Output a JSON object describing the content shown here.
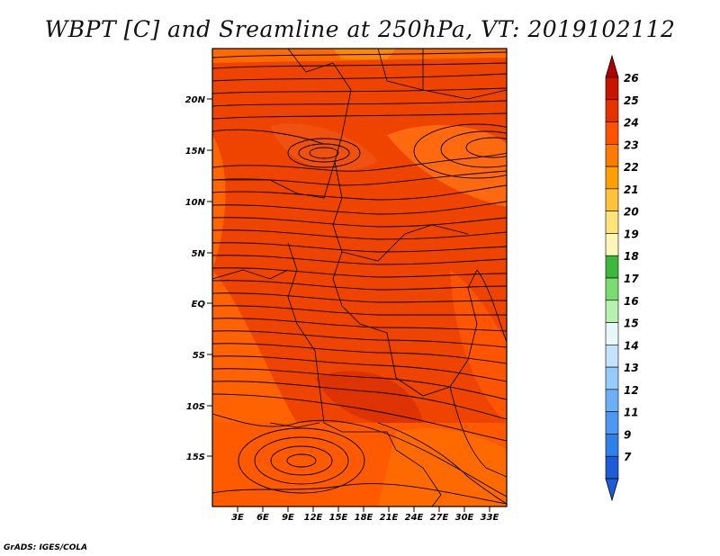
{
  "title": "WBPT [C] and Sreamline at 250hPa, VT: 2019102112",
  "credit": "GrADS: IGES/COLA",
  "map": {
    "lon_labels": [
      "3E",
      "6E",
      "9E",
      "12E",
      "15E",
      "18E",
      "21E",
      "24E",
      "27E",
      "30E",
      "33E"
    ],
    "lat_labels": [
      "20N",
      "15N",
      "10N",
      "5N",
      "EQ",
      "5S",
      "10S",
      "15S"
    ],
    "fill_colors": {
      "dominant": "#ee4400",
      "darker": "#dd3300",
      "lighter": "#ff6600",
      "warm_orange": "#ff8800"
    }
  },
  "colorbar": {
    "labels": [
      "7",
      "9",
      "11",
      "12",
      "13",
      "14",
      "15",
      "16",
      "17",
      "18",
      "19",
      "20",
      "21",
      "22",
      "23",
      "24",
      "25",
      "26"
    ],
    "colors": [
      "#1c5dd7",
      "#3080ea",
      "#4c98f2",
      "#6cb0f6",
      "#96cafa",
      "#c4e2fc",
      "#e8f8f8",
      "#b8f0b0",
      "#78dc70",
      "#3cb83c",
      "#fff6b8",
      "#ffe47a",
      "#ffc43a",
      "#ffa000",
      "#ff7a00",
      "#ff5200",
      "#e83000",
      "#c81400"
    ],
    "low_arrow_color": "#1c5dd7",
    "high_arrow_color": "#b00000"
  }
}
